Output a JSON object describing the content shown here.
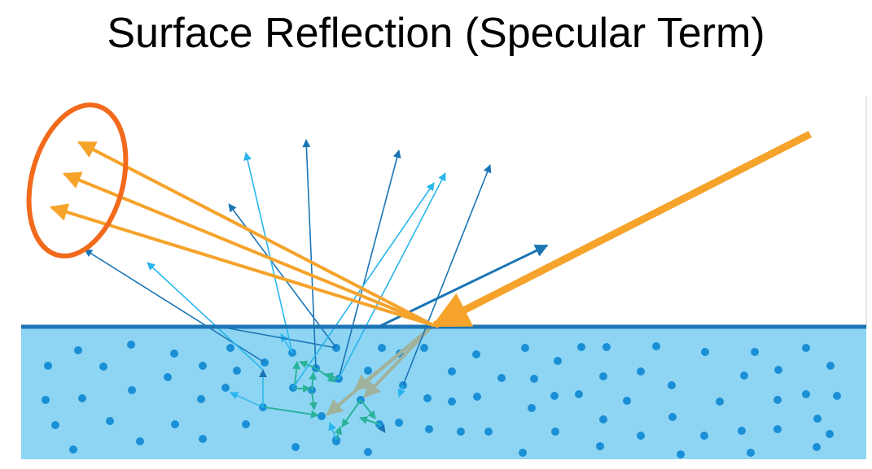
{
  "title": "Surface Reflection (Specular Term)",
  "colors": {
    "background": "#ffffff",
    "subsurface": "#8ed5f4",
    "surface_line": "#1b75b5",
    "particles": "#1a8fd6",
    "light_ray": "#f5a32b",
    "highlight_ellipse": "#f26a1b",
    "scatter_dark": "#1b75b5",
    "scatter_light": "#29b6ec",
    "scatter_internal": "#2bb39a",
    "refracted": "#a0b29c"
  },
  "icons": {
    "incident_arrow": "arrow-icon",
    "reflection_group": "ellipse-icon"
  }
}
